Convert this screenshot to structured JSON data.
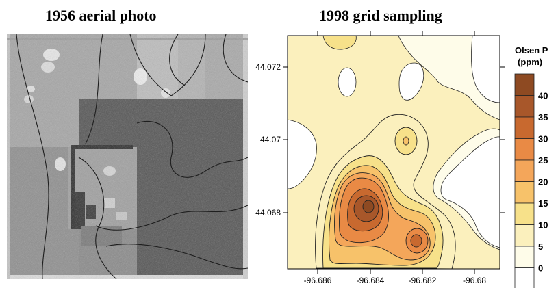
{
  "left_panel": {
    "title": "1956 aerial photo"
  },
  "right_panel": {
    "title": "1998 grid sampling",
    "y_ticks": [
      "44.072",
      "44.07",
      "44.068"
    ],
    "x_ticks": [
      "-96.686",
      "-96.684",
      "-96.682",
      "-96.68"
    ]
  },
  "legend": {
    "title_line1": "Olsen P",
    "title_line2": "(ppm)",
    "levels": [
      "40",
      "35",
      "30",
      "25",
      "20",
      "15",
      "10",
      "5",
      "0"
    ],
    "colors": [
      "#a8572a",
      "#c8692f",
      "#e98a45",
      "#f4a65a",
      "#f7c26a",
      "#f7e18a",
      "#fbf0bd",
      "#fefce9",
      "#ffffff",
      "#8e4a22"
    ]
  },
  "chart_data": {
    "type": "heatmap",
    "title": "1998 grid sampling",
    "xlabel": "",
    "ylabel": "",
    "x_ticks": [
      -96.686,
      -96.684,
      -96.682,
      -96.68
    ],
    "y_ticks": [
      44.068,
      44.07,
      44.072
    ],
    "legend_title": "Olsen P (ppm)",
    "contour_levels": [
      0,
      5,
      10,
      15,
      20,
      25,
      30,
      35,
      40
    ],
    "hotspots": [
      {
        "x": -96.6843,
        "y": 44.0681,
        "peak": 45
      },
      {
        "x": -96.6822,
        "y": 44.0676,
        "peak": 30
      },
      {
        "x": -96.6824,
        "y": 44.0702,
        "peak": 15
      }
    ]
  }
}
